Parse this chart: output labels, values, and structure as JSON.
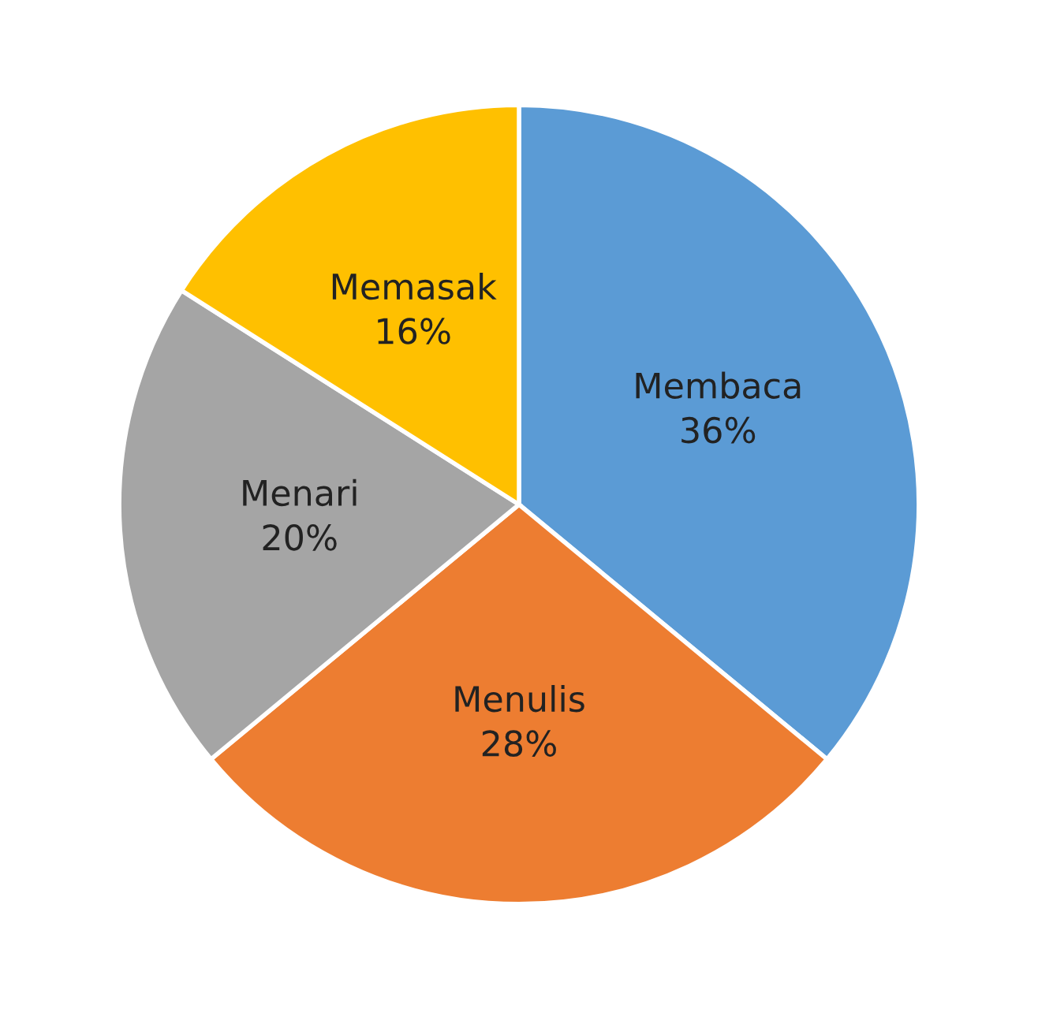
{
  "chart_data": {
    "type": "pie",
    "categories": [
      "Membaca",
      "Menulis",
      "Menari",
      "Memasak"
    ],
    "values": [
      36,
      28,
      20,
      16
    ],
    "value_labels": [
      "36%",
      "28%",
      "20%",
      "16%"
    ],
    "colors": [
      "#5b9bd5",
      "#ed7d31",
      "#a5a5a5",
      "#ffc000"
    ]
  }
}
